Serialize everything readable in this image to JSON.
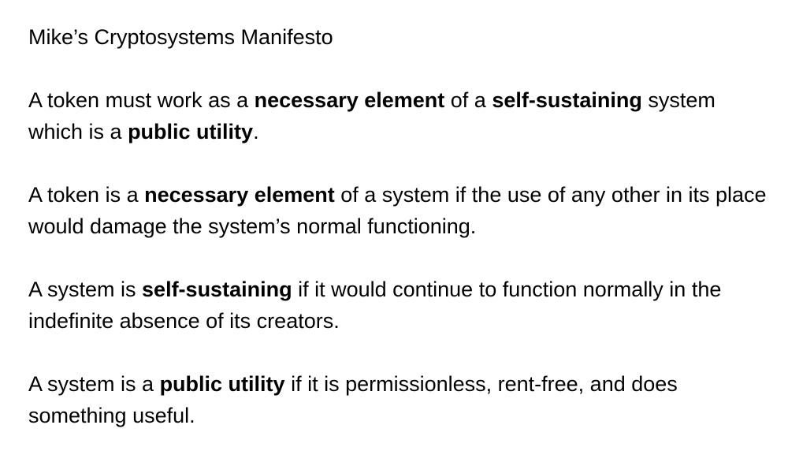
{
  "document": {
    "title": "Mike’s Cryptosystems Manifesto",
    "paragraphs": [
      {
        "runs": [
          {
            "text": "A token must work as a ",
            "bold": false
          },
          {
            "text": "necessary element",
            "bold": true
          },
          {
            "text": " of a ",
            "bold": false
          },
          {
            "text": "self-sustaining",
            "bold": true
          },
          {
            "text": " system which is a ",
            "bold": false
          },
          {
            "text": "public utility",
            "bold": true
          },
          {
            "text": ".",
            "bold": false
          }
        ]
      },
      {
        "runs": [
          {
            "text": "A token is a ",
            "bold": false
          },
          {
            "text": "necessary element",
            "bold": true
          },
          {
            "text": " of a system if the use of any other in its place would damage the system’s normal functioning.",
            "bold": false
          }
        ]
      },
      {
        "runs": [
          {
            "text": "A system is ",
            "bold": false
          },
          {
            "text": "self-sustaining",
            "bold": true
          },
          {
            "text": " if it would continue to function normally in the indefinite absence of its creators.",
            "bold": false
          }
        ]
      },
      {
        "runs": [
          {
            "text": "A system is a ",
            "bold": false
          },
          {
            "text": "public utility",
            "bold": true
          },
          {
            "text": " if it is permissionless, rent-free, and does something useful.",
            "bold": false
          }
        ]
      }
    ]
  }
}
